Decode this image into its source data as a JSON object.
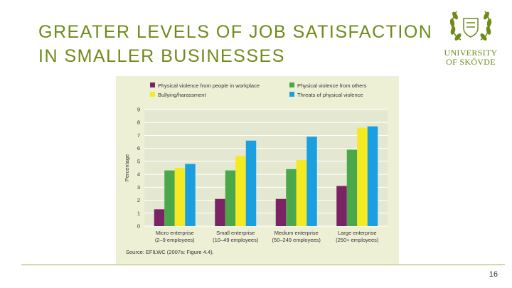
{
  "slide": {
    "title_lines": [
      "GREATER LEVELS OF JOB SATISFACTION",
      "IN SMALLER BUSINESSES"
    ],
    "page_number": "16",
    "logo": {
      "line1": "UNIVERSITY",
      "line2": "OF SKÖVDE"
    },
    "accent_color": "#6f8a18"
  },
  "chart_data": {
    "type": "bar",
    "ylabel": "Percentage",
    "ylim": [
      0,
      9
    ],
    "yticks": [
      0,
      1,
      2,
      3,
      4,
      5,
      6,
      7,
      8,
      9
    ],
    "grid": true,
    "legend_position": "top",
    "categories": [
      [
        "Micro enterprise",
        "(2–9 employees)"
      ],
      [
        "Small enterprise",
        "(10–49 employees)"
      ],
      [
        "Medium enterprise",
        "(50–249 employees)"
      ],
      [
        "Large enterprise",
        "(250+ employees)"
      ]
    ],
    "series": [
      {
        "name": "Physical violence from people in workplace",
        "color": "#7a2466",
        "values": [
          1.3,
          2.1,
          2.1,
          3.1
        ]
      },
      {
        "name": "Physical violence from others",
        "color": "#4aa84a",
        "values": [
          4.3,
          4.3,
          4.4,
          5.9
        ]
      },
      {
        "name": "Bullying/harassment",
        "color": "#f5ea22",
        "values": [
          4.5,
          5.4,
          5.1,
          7.6
        ]
      },
      {
        "name": "Threats of physical violence",
        "color": "#1aa0e0",
        "values": [
          4.8,
          6.6,
          6.9,
          7.7
        ]
      }
    ],
    "source": "Source: EFILWC (2007a: Figure 4.4)."
  }
}
